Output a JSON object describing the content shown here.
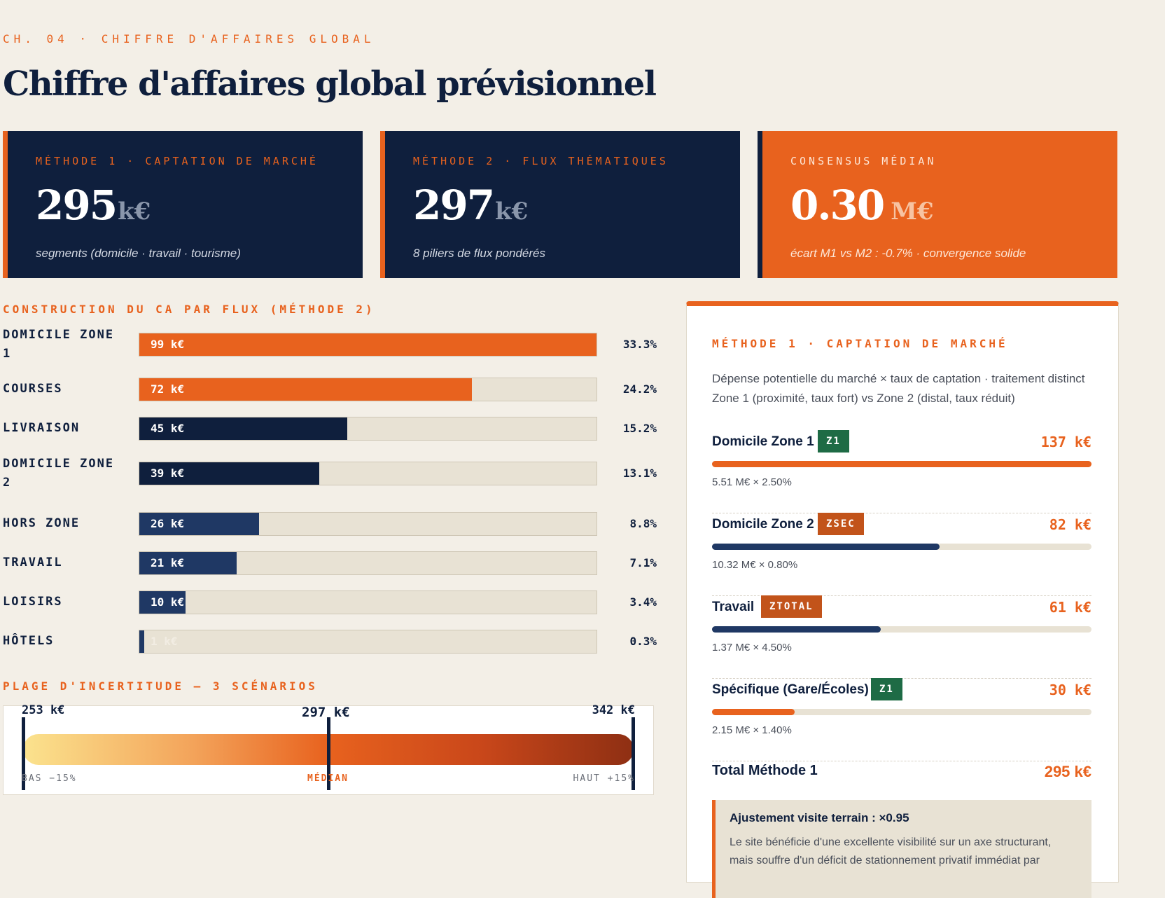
{
  "header": {
    "eyebrow": "CH. 04 · CHIFFRE D'AFFAIRES GLOBAL",
    "title": "Chiffre d'affaires global prévisionnel"
  },
  "kpis": [
    {
      "label": "MÉTHODE 1 · CAPTATION DE MARCHÉ",
      "value": "295",
      "unit": "k€",
      "sub": "segments (domicile · travail · tourisme)",
      "style": "navy"
    },
    {
      "label": "MÉTHODE 2 · FLUX THÉMATIQUES",
      "value": "297",
      "unit": "k€",
      "sub": "8 piliers de flux pondérés",
      "style": "navy"
    },
    {
      "label": "CONSENSUS MÉDIAN",
      "value": "0.30",
      "unit": "M€",
      "sub": "écart M1 vs M2 : -0.7% · convergence solide",
      "style": "orange"
    }
  ],
  "flows_title": "CONSTRUCTION DU CA PAR FLUX (MÉTHODE 2)",
  "chart_data": {
    "type": "bar",
    "orientation": "horizontal",
    "title": "CONSTRUCTION DU CA PAR FLUX (MÉTHODE 2)",
    "unit": "k€",
    "max": 99,
    "categories": [
      "DOMICILE ZONE 1",
      "COURSES",
      "LIVRAISON",
      "DOMICILE ZONE 2",
      "HORS ZONE",
      "TRAVAIL",
      "LOISIRS",
      "HÔTELS"
    ],
    "values": [
      99,
      72,
      45,
      39,
      26,
      21,
      10,
      1
    ],
    "value_labels": [
      "99 k€",
      "72 k€",
      "45 k€",
      "39 k€",
      "26 k€",
      "21 k€",
      "10 k€",
      "1 k€"
    ],
    "shares": [
      "33.3%",
      "24.2%",
      "15.2%",
      "13.1%",
      "8.8%",
      "7.1%",
      "3.4%",
      "0.3%"
    ],
    "colors": [
      "#e8621e",
      "#e8621e",
      "#0f1f3d",
      "#0f1f3d",
      "#1f3864",
      "#1f3864",
      "#1f3864",
      "#1f3864"
    ]
  },
  "range": {
    "title": "PLAGE D'INCERTITUDE — 3 SCÉNARIOS",
    "low": {
      "value": "253 k€",
      "label": "BAS −15%"
    },
    "median": {
      "value": "297 k€",
      "label": "MÉDIAN"
    },
    "high": {
      "value": "342 k€",
      "label": "HAUT +15%"
    },
    "median_fraction": 0.5
  },
  "panel": {
    "title": "MÉTHODE 1 · CAPTATION DE MARCHÉ",
    "description": "Dépense potentielle du marché × taux de captation · traitement distinct Zone 1 (proximité, taux fort) vs Zone 2 (distal, taux réduit)",
    "items": [
      {
        "name": "Domicile Zone 1",
        "badge": "Z1",
        "badge_color": "#1e6b45",
        "value": "137 k€",
        "fill": 1.0,
        "bar_color": "#e8621e",
        "formula": "5.51 M€ × 2.50%"
      },
      {
        "name": "Domicile Zone 2",
        "badge": "ZSEC",
        "badge_color": "#c2531a",
        "value": "82 k€",
        "fill": 0.6,
        "bar_color": "#1f3864",
        "formula": "10.32 M€ × 0.80%"
      },
      {
        "name": "Travail",
        "badge": "ZTOTAL",
        "badge_color": "#c2531a",
        "value": "61 k€",
        "fill": 0.445,
        "bar_color": "#1f3864",
        "formula": "1.37 M€ × 4.50%"
      },
      {
        "name": "Spécifique (Gare/Écoles)",
        "badge": "Z1",
        "badge_color": "#1e6b45",
        "value": "30 k€",
        "fill": 0.218,
        "bar_color": "#e8621e",
        "formula": "2.15 M€ × 1.40%"
      }
    ],
    "total_label": "Total Méthode 1",
    "total_value": "295 k€",
    "adjust_title": "Ajustement visite terrain : ×0.95",
    "adjust_text": "Le site bénéficie d'une excellente visibilité sur un axe structurant, mais souffre d'un déficit de stationnement privatif immédiat par"
  }
}
